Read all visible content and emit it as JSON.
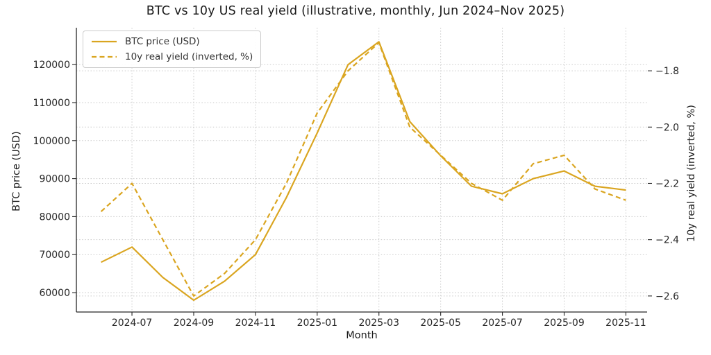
{
  "chart_data": {
    "type": "line",
    "title": "BTC vs 10y US real yield (illustrative, monthly, Jun 2024–Nov 2025)",
    "xlabel": "Month",
    "ylabel_left": "BTC price (USD)",
    "ylabel_right": "10y real yield (inverted, %)",
    "x": [
      "2024-06",
      "2024-07",
      "2024-08",
      "2024-09",
      "2024-10",
      "2024-11",
      "2024-12",
      "2025-01",
      "2025-02",
      "2025-03",
      "2025-04",
      "2025-05",
      "2025-06",
      "2025-07",
      "2025-08",
      "2025-09",
      "2025-10",
      "2025-11"
    ],
    "series": [
      {
        "name": "BTC price (USD)",
        "axis": "left",
        "style": "solid",
        "values": [
          68000,
          72000,
          64000,
          58000,
          63000,
          70000,
          85000,
          102000,
          120000,
          126000,
          105000,
          96000,
          88000,
          86000,
          90000,
          92000,
          88000,
          87000
        ]
      },
      {
        "name": "10y real yield (inverted, %)",
        "axis": "right",
        "style": "dashed",
        "values": [
          -2.3,
          -2.2,
          -2.4,
          -2.6,
          -2.52,
          -2.4,
          -2.2,
          -1.95,
          -1.8,
          -1.7,
          -2.0,
          -2.1,
          -2.2,
          -2.26,
          -2.13,
          -2.1,
          -2.22,
          -2.26
        ]
      }
    ],
    "xticks": {
      "indices": [
        1,
        3,
        5,
        7,
        9,
        11,
        13,
        15,
        17
      ],
      "labels": [
        "2024-07",
        "2024-09",
        "2024-11",
        "2025-01",
        "2025-03",
        "2025-05",
        "2025-07",
        "2025-09",
        "2025-11"
      ]
    },
    "yticks_left": {
      "values": [
        60000,
        70000,
        80000,
        90000,
        100000,
        110000,
        120000
      ],
      "labels": [
        "60000",
        "70000",
        "80000",
        "90000",
        "100000",
        "110000",
        "120000"
      ]
    },
    "yticks_right": {
      "values": [
        -1.8,
        -2.0,
        -2.2,
        -2.4,
        -2.6
      ],
      "labels": [
        "−1.8",
        "−2.0",
        "−2.2",
        "−2.4",
        "−2.6"
      ]
    },
    "ylim_left": [
      54900,
      129700
    ],
    "ylim_right": [
      -2.657,
      -1.647
    ],
    "grid": true,
    "legend_position": "upper left",
    "line_color": "#DAA520",
    "grid_color": "#c9c9c9",
    "background": "#ffffff"
  }
}
